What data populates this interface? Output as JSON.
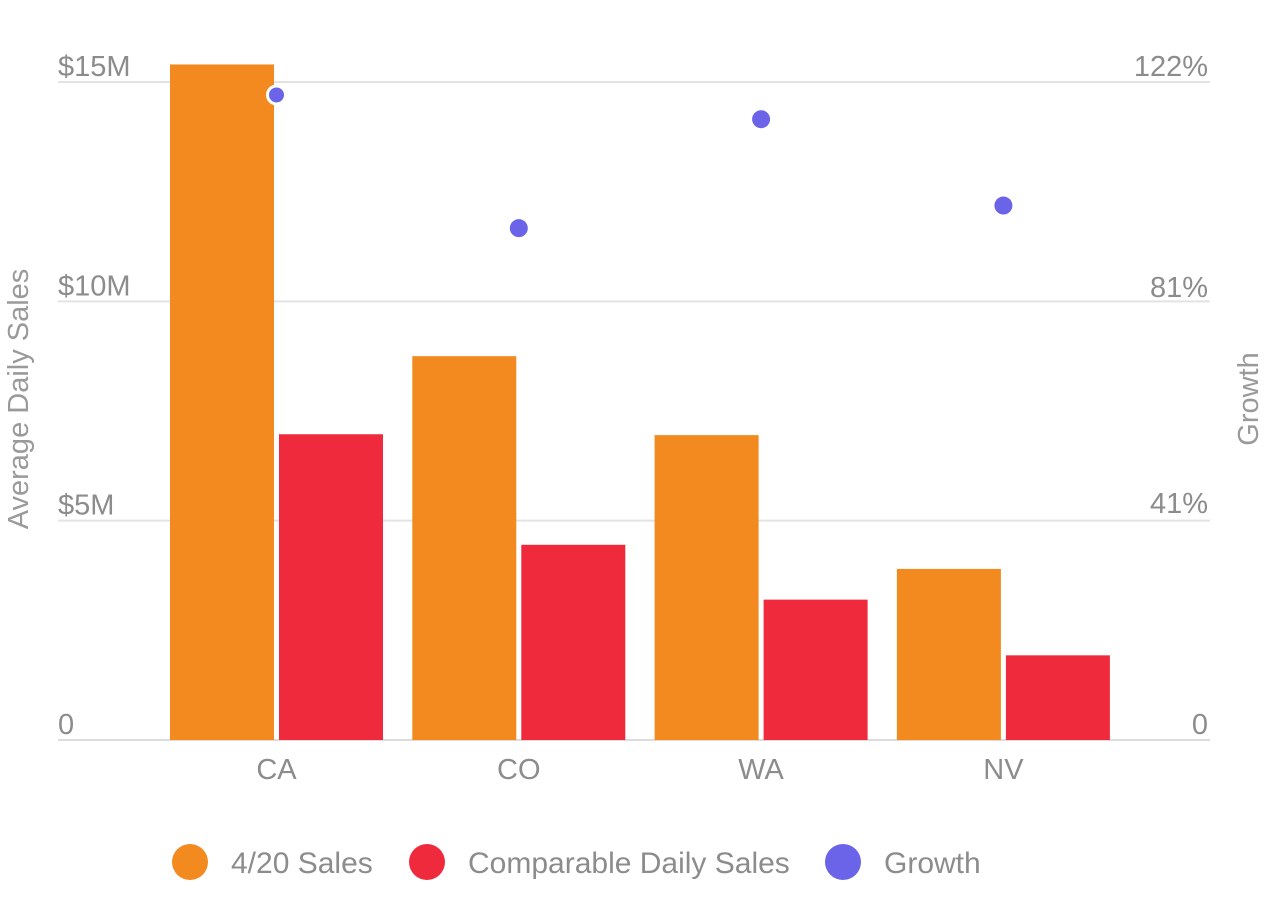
{
  "chart_data": {
    "type": "bar",
    "categories": [
      "CA",
      "CO",
      "WA",
      "NV"
    ],
    "series": [
      {
        "name": "4/20 Sales",
        "kind": "bar",
        "axis": "left",
        "color": "#f28a1f",
        "values": [
          15.4,
          8.75,
          6.95,
          3.9
        ]
      },
      {
        "name": "Comparable Daily Sales",
        "kind": "bar",
        "axis": "left",
        "color": "#ee2a3c",
        "values": [
          6.97,
          4.45,
          3.2,
          1.93
        ]
      },
      {
        "name": "Growth",
        "kind": "scatter",
        "axis": "right",
        "color": "#6b63e8",
        "values": [
          119.6,
          94.9,
          115.1,
          99.1
        ]
      }
    ],
    "ylabel": "Average Daily Sales",
    "y2label": "Growth",
    "ylim": [
      0,
      15
    ],
    "y2lim": [
      0,
      122
    ],
    "yticks": [
      {
        "value": 0,
        "label": "0"
      },
      {
        "value": 5,
        "label": "$5M"
      },
      {
        "value": 10,
        "label": "$10M"
      },
      {
        "value": 15,
        "label": "$15M"
      }
    ],
    "y2ticks": [
      {
        "value": 0,
        "label": "0"
      },
      {
        "value": 41,
        "label": "41%"
      },
      {
        "value": 81,
        "label": "81%"
      },
      {
        "value": 122,
        "label": "122%"
      }
    ],
    "grid": true,
    "legend_position": "bottom"
  }
}
